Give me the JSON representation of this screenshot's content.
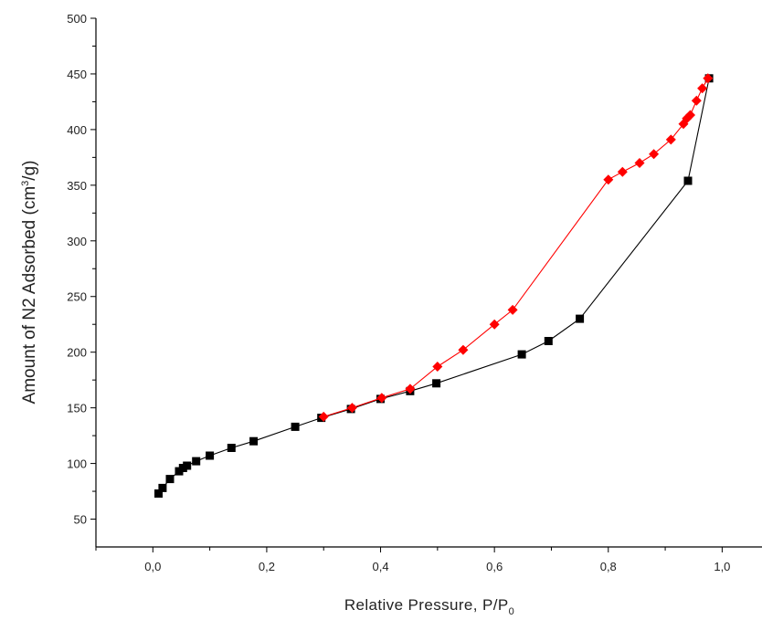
{
  "chart_data": {
    "type": "scatter",
    "xlabel": {
      "main": "Relative Pressure, P/P",
      "sub": "0"
    },
    "ylabel": {
      "prefix": "Amount of N2 Adsorbed (cm",
      "sup": "3",
      "suffix": "/g)"
    },
    "xlim": [
      -0.1,
      1.07
    ],
    "ylim": [
      25,
      500
    ],
    "x_ticks": [
      {
        "value": 0.0,
        "label": "0,0"
      },
      {
        "value": 0.2,
        "label": "0,2"
      },
      {
        "value": 0.4,
        "label": "0,4"
      },
      {
        "value": 0.6,
        "label": "0,6"
      },
      {
        "value": 0.8,
        "label": "0,8"
      },
      {
        "value": 1.0,
        "label": "1,0"
      }
    ],
    "y_ticks": [
      {
        "value": 50,
        "label": "50"
      },
      {
        "value": 100,
        "label": "100"
      },
      {
        "value": 150,
        "label": "150"
      },
      {
        "value": 200,
        "label": "200"
      },
      {
        "value": 250,
        "label": "250"
      },
      {
        "value": 300,
        "label": "300"
      },
      {
        "value": 350,
        "label": "350"
      },
      {
        "value": 400,
        "label": "400"
      },
      {
        "value": 450,
        "label": "450"
      },
      {
        "value": 500,
        "label": "500"
      }
    ],
    "grid": false,
    "series": [
      {
        "color": "#000000",
        "marker": "square",
        "x": [
          0.01,
          0.017,
          0.03,
          0.046,
          0.053,
          0.06,
          0.076,
          0.1,
          0.138,
          0.177,
          0.25,
          0.296,
          0.348,
          0.4,
          0.452,
          0.498,
          0.648,
          0.695,
          0.75,
          0.94,
          0.977
        ],
        "y": [
          73,
          78,
          86,
          93,
          96,
          98,
          102,
          107,
          114,
          120,
          133,
          141,
          149,
          158,
          165,
          172,
          198,
          210,
          230,
          354,
          446
        ]
      },
      {
        "color": "#ff0000",
        "marker": "diamond",
        "x": [
          0.3,
          0.35,
          0.402,
          0.452,
          0.5,
          0.545,
          0.6,
          0.632,
          0.8,
          0.825,
          0.855,
          0.88,
          0.91,
          0.932,
          0.938,
          0.944,
          0.955,
          0.965,
          0.975
        ],
        "y": [
          142,
          150,
          159,
          167,
          187,
          202,
          225,
          238,
          355,
          362,
          370,
          378,
          391,
          405,
          410,
          413,
          426,
          437,
          446
        ]
      }
    ]
  }
}
